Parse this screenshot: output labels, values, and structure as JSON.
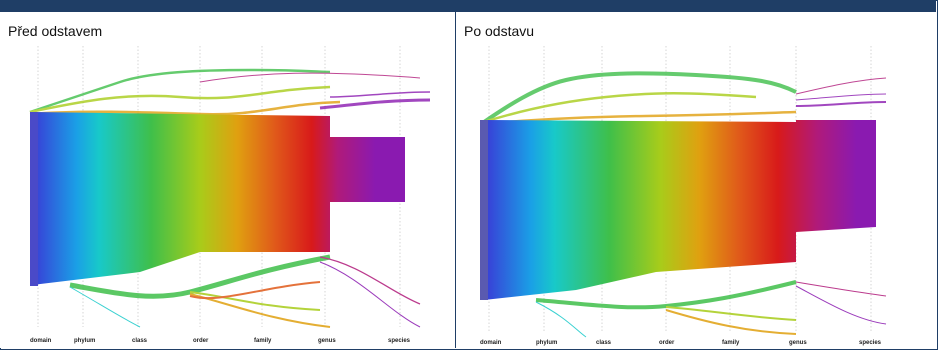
{
  "panels": {
    "before": {
      "title": "Před odstavem"
    },
    "after": {
      "title": "Po odstavu"
    }
  },
  "axis_levels": [
    "domain",
    "phylum",
    "class",
    "order",
    "family",
    "genus",
    "species"
  ],
  "colors": {
    "frame": "#1f3e66",
    "flow_gradient": [
      "#3a3ad6",
      "#1aa0e6",
      "#18c9c9",
      "#3fbf4a",
      "#a8cc1a",
      "#e0a010",
      "#e05a1a",
      "#d81a1a",
      "#b01a7a",
      "#8a1ab0"
    ]
  }
}
